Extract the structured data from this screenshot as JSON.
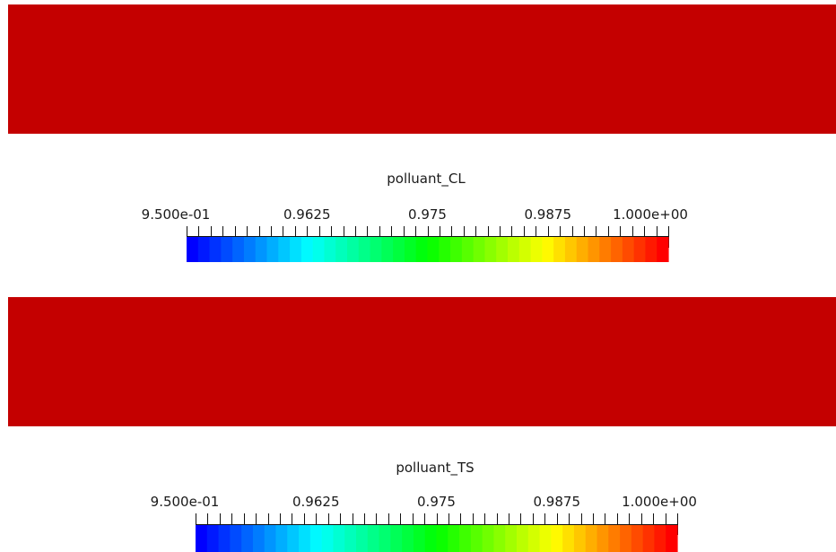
{
  "panels": [
    {
      "field_color": "#c40000",
      "colorbar": {
        "title": "polluant_CL",
        "tick_labels": [
          "9.500e-01",
          "0.9625",
          "0.975",
          "0.9875",
          "1.000e+00"
        ],
        "range": [
          0.95,
          1.0
        ],
        "colormap": "rainbow"
      }
    },
    {
      "field_color": "#c40000",
      "colorbar": {
        "title": "polluant_TS",
        "tick_labels": [
          "9.500e-01",
          "0.9625",
          "0.975",
          "0.9875",
          "1.000e+00"
        ],
        "range": [
          0.95,
          1.0
        ],
        "colormap": "rainbow"
      }
    }
  ],
  "colormap_stops": [
    "#0000ff",
    "#00ffff",
    "#00ff00",
    "#ffff00",
    "#ff0000"
  ]
}
